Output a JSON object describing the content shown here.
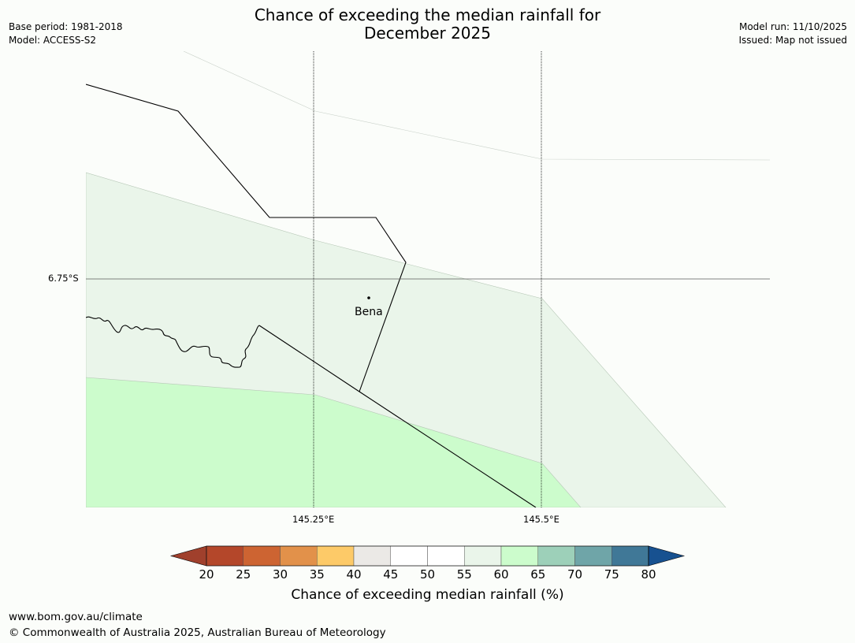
{
  "title": {
    "line1": "Chance of exceeding the median rainfall for",
    "line2": "December 2025"
  },
  "meta_left": {
    "base_period": "Base period: 1981-2018",
    "model": "Model: ACCESS-S2"
  },
  "meta_right": {
    "model_run": "Model run: 11/10/2025",
    "issued": "Issued: Map not issued"
  },
  "map": {
    "lat_label": "6.75°S",
    "lon_labels": [
      "145.25°E",
      "145.5°E"
    ],
    "place_name": "Bena",
    "zones": [
      {
        "name": "55-60",
        "color": "#eaf5ea"
      },
      {
        "name": "60-65",
        "color": "#ccfccc"
      }
    ]
  },
  "colorbar": {
    "colors": [
      "#a0402c",
      "#b4472a",
      "#cd6432",
      "#e2914a",
      "#fdca68",
      "#ebe9e6",
      "#ffffff",
      "#ffffff",
      "#eaf5ea",
      "#ccfccc",
      "#9dd0b9",
      "#6fa5a8",
      "#407897",
      "#175190"
    ],
    "tick_labels": [
      "20",
      "25",
      "30",
      "35",
      "40",
      "45",
      "50",
      "55",
      "60",
      "65",
      "70",
      "75",
      "80"
    ],
    "label": "Chance of exceeding median rainfall (%)"
  },
  "footer": {
    "url": "www.bom.gov.au/climate",
    "copyright": "© Commonwealth of Australia 2025, Australian Bureau of Meteorology"
  }
}
